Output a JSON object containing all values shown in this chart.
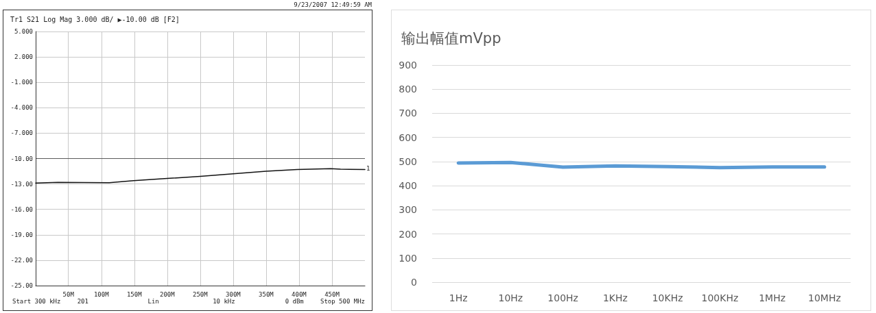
{
  "chart_data": [
    {
      "type": "line",
      "title": "Tr1 S21 Log Mag 3.000 dB/ ▶-10.00 dB [F2]",
      "series": [
        {
          "color": "#111111",
          "x": [
            0.3,
            34,
            112,
            149,
            200,
            250,
            300,
            350,
            397,
            448,
            463,
            500
          ],
          "values": [
            -12.9,
            -12.8,
            -12.86,
            -12.6,
            -12.35,
            -12.1,
            -11.8,
            -11.5,
            -11.3,
            -11.2,
            -11.25,
            -11.3
          ]
        }
      ],
      "xlim": [
        0.3,
        500
      ],
      "xticks": [
        {
          "value": 50,
          "label": "50M"
        },
        {
          "value": 100,
          "label": "100M"
        },
        {
          "value": 150,
          "label": "150M"
        },
        {
          "value": 200,
          "label": "200M"
        },
        {
          "value": 250,
          "label": "250M"
        },
        {
          "value": 300,
          "label": "300M"
        },
        {
          "value": 350,
          "label": "350M"
        },
        {
          "value": 400,
          "label": "400M"
        },
        {
          "value": 450,
          "label": "450M"
        }
      ],
      "ylim": [
        -25,
        5
      ],
      "yticks": [
        {
          "value": -25,
          "label": "-25.00"
        },
        {
          "value": -22,
          "label": "-22.00"
        },
        {
          "value": -19,
          "label": "-19.00"
        },
        {
          "value": -16,
          "label": "-16.00"
        },
        {
          "value": -13,
          "label": "-13.00"
        },
        {
          "value": -10,
          "label": "-10.00"
        },
        {
          "value": -7,
          "label": "-7.000"
        },
        {
          "value": -4,
          "label": "-4.000"
        },
        {
          "value": -1,
          "label": "-1.000"
        },
        {
          "value": 2,
          "label": "2.000"
        },
        {
          "value": 5,
          "label": "5.000"
        }
      ],
      "ref_lines": [
        {
          "axis": "y",
          "value": -10,
          "label": null,
          "color": "#111111"
        }
      ],
      "annotations": [
        "9/23/2007 12:49:59 AM",
        "Start 300 kHz",
        "201",
        "Lin",
        "10 kHz",
        "0 dBm",
        "Stop 500 MHz",
        {
          "text": "1",
          "x": 500,
          "y": -11.3
        }
      ],
      "grid": true,
      "marker": "none",
      "line_style": "solid"
    },
    {
      "type": "line",
      "title": "输出幅值mVpp",
      "categories": [
        "1Hz",
        "10Hz",
        "100Hz",
        "1KHz",
        "10KHz",
        "100KHz",
        "1MHz",
        "10MHz"
      ],
      "series": [
        {
          "color": "#5b9bd5",
          "values": [
            494,
            496,
            477,
            482,
            479,
            475,
            478,
            478
          ]
        }
      ],
      "ylim": [
        0,
        900
      ],
      "yticks": [
        0,
        100,
        200,
        300,
        400,
        500,
        600,
        700,
        800,
        900
      ],
      "grid": "y",
      "marker": "none",
      "line_style": "solid"
    }
  ]
}
